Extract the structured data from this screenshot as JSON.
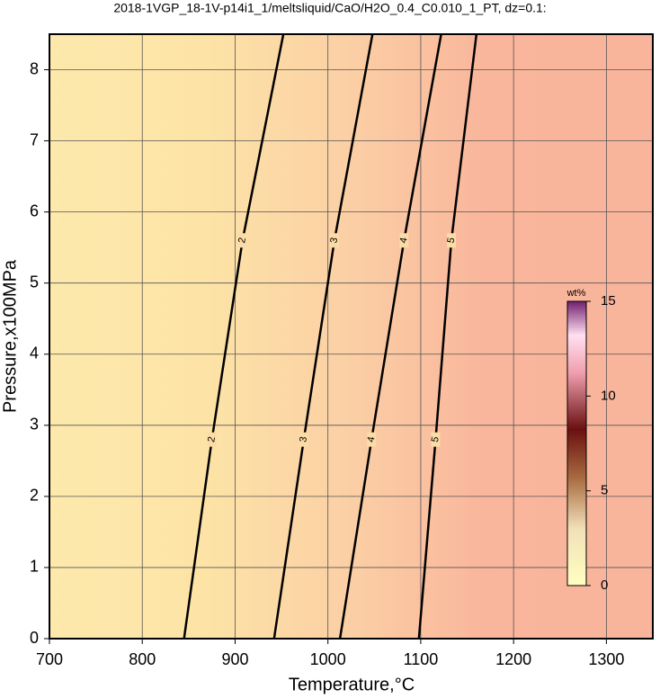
{
  "chart_data": {
    "type": "contour",
    "title": "2018-1VGP_18-1V-p14i1_1/meltsliquid/CaO/H2O_0.4_C0.010_1_PT, dz=0.1:",
    "xlabel": "Temperature,°C",
    "ylabel": "Pressure,x100MPa",
    "xlim": [
      700,
      1350
    ],
    "ylim": [
      0,
      8.5
    ],
    "xticks": [
      700,
      800,
      900,
      1000,
      1100,
      1200,
      1300
    ],
    "yticks": [
      0,
      1,
      2,
      3,
      4,
      5,
      6,
      7,
      8
    ],
    "grid": true,
    "contours": [
      {
        "level": 2,
        "x": [
          845,
          875,
          908,
          952
        ],
        "y": [
          0,
          2.8,
          5.6,
          8.5
        ]
      },
      {
        "level": 3,
        "x": [
          942,
          974,
          1007,
          1048
        ],
        "y": [
          0,
          2.8,
          5.6,
          8.5
        ]
      },
      {
        "level": 4,
        "x": [
          1013,
          1047,
          1082,
          1122
        ],
        "y": [
          0,
          2.8,
          5.6,
          8.5
        ]
      },
      {
        "level": 5,
        "x": [
          1098,
          1116,
          1133,
          1160
        ],
        "y": [
          0,
          2.8,
          5.6,
          8.5
        ]
      }
    ],
    "colorbar": {
      "label": "wt%",
      "lim": [
        0,
        15
      ],
      "ticks": [
        0,
        5,
        10,
        15
      ]
    }
  }
}
